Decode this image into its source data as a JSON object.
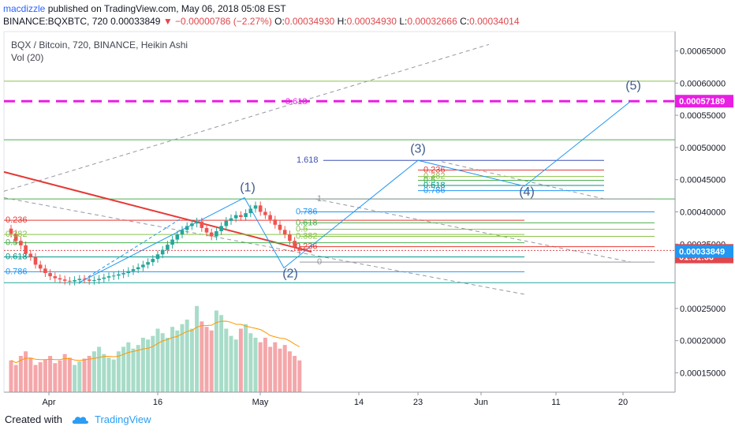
{
  "header": {
    "author": "macdizzle",
    "published_text": "published on TradingView.com, May 06, 2018 05:08 EST",
    "symbol": "BINANCE:BQXBTC, 720",
    "last": "0.00033849",
    "change": "−0.00000786 (−2.27%)",
    "o_label": "O:",
    "o_value": "0.00034930",
    "h_label": "H:",
    "h_value": "0.00034930",
    "l_label": "L:",
    "l_value": "0.00032666",
    "c_label": "C:",
    "c_value": "0.00034014",
    "title": "BQX / Bitcoin, 720, BINANCE, Heikin Ashi",
    "indicator": "Vol (20)"
  },
  "footer": {
    "created_with": "Created with",
    "brand": "TradingView"
  },
  "chart_data": {
    "type": "candlestick",
    "x_ticks": [
      "Apr",
      "16",
      "May",
      "14",
      "23",
      "Jun",
      "11",
      "20"
    ],
    "y_ticks": [
      "0.00065000",
      "0.00060000",
      "0.00055000",
      "0.00050000",
      "0.00045000",
      "0.00040000",
      "0.00035000",
      "0.00025000",
      "0.00020000",
      "0.00015000"
    ],
    "ylim": [
      0.00012,
      0.00068
    ],
    "price_labels": [
      {
        "value": 0.00057189,
        "text": "0.00057189",
        "color": "#e91ee3"
      },
      {
        "value": 0.00034014,
        "text": "0.00034014",
        "color": "#e0474c"
      },
      {
        "value": 0.00033,
        "text": "01:51:36",
        "color": "#e0474c"
      },
      {
        "value": 0.00033849,
        "text": "0.00033849",
        "color": "#2196f3"
      }
    ],
    "waves": [
      {
        "label": "(1)",
        "price": 0.000422
      },
      {
        "label": "(2)",
        "price": 0.000313
      },
      {
        "label": "(3)",
        "price": 0.00048
      },
      {
        "label": "(4)",
        "price": 0.00044
      },
      {
        "label": "(5)",
        "price": 0.000572
      }
    ],
    "fib_upper": [
      "1.618",
      "0.236",
      "0.382",
      "0.5",
      "0.618",
      "0.786",
      "3.618"
    ],
    "fib_lower": [
      "1",
      "0.786",
      "0.618",
      "0.5",
      "0.382",
      "0.236",
      "0"
    ],
    "fib_left": [
      "0.236",
      "0.382",
      "0.5",
      "0.618",
      "0.786"
    ],
    "candles": [
      0.000366,
      0.000355,
      0.000348,
      0.000335,
      0.00033,
      0.000318,
      0.000312,
      0.000305,
      0.0003,
      0.000297,
      0.000295,
      0.000293,
      0.000292,
      0.000294,
      0.000296,
      0.000295,
      0.000293,
      0.000294,
      0.000296,
      0.000298,
      0.0003,
      0.000301,
      0.000303,
      0.000305,
      0.000308,
      0.000311,
      0.000314,
      0.000318,
      0.000322,
      0.000327,
      0.000334,
      0.000341,
      0.000349,
      0.000357,
      0.000365,
      0.000372,
      0.000378,
      0.000382,
      0.000385,
      0.000375,
      0.000368,
      0.000362,
      0.00037,
      0.000378,
      0.000386,
      0.00039,
      0.000395,
      0.000392,
      0.000398,
      0.000405,
      0.00041,
      0.0004,
      0.000395,
      0.000388,
      0.00038,
      0.000372,
      0.000365,
      0.000355,
      0.000345,
      0.00034
    ],
    "volumes": [
      0.35,
      0.3,
      0.4,
      0.45,
      0.38,
      0.3,
      0.33,
      0.36,
      0.4,
      0.32,
      0.35,
      0.42,
      0.38,
      0.3,
      0.34,
      0.37,
      0.4,
      0.45,
      0.5,
      0.42,
      0.38,
      0.36,
      0.45,
      0.5,
      0.55,
      0.48,
      0.52,
      0.6,
      0.58,
      0.62,
      0.7,
      0.65,
      0.6,
      0.72,
      0.68,
      0.75,
      0.8,
      0.7,
      0.95,
      0.78,
      0.72,
      0.68,
      0.9,
      0.85,
      0.7,
      0.62,
      0.58,
      0.7,
      0.75,
      0.65,
      0.6,
      0.55,
      0.6,
      0.5,
      0.55,
      0.48,
      0.52,
      0.45,
      0.4,
      0.35
    ]
  }
}
